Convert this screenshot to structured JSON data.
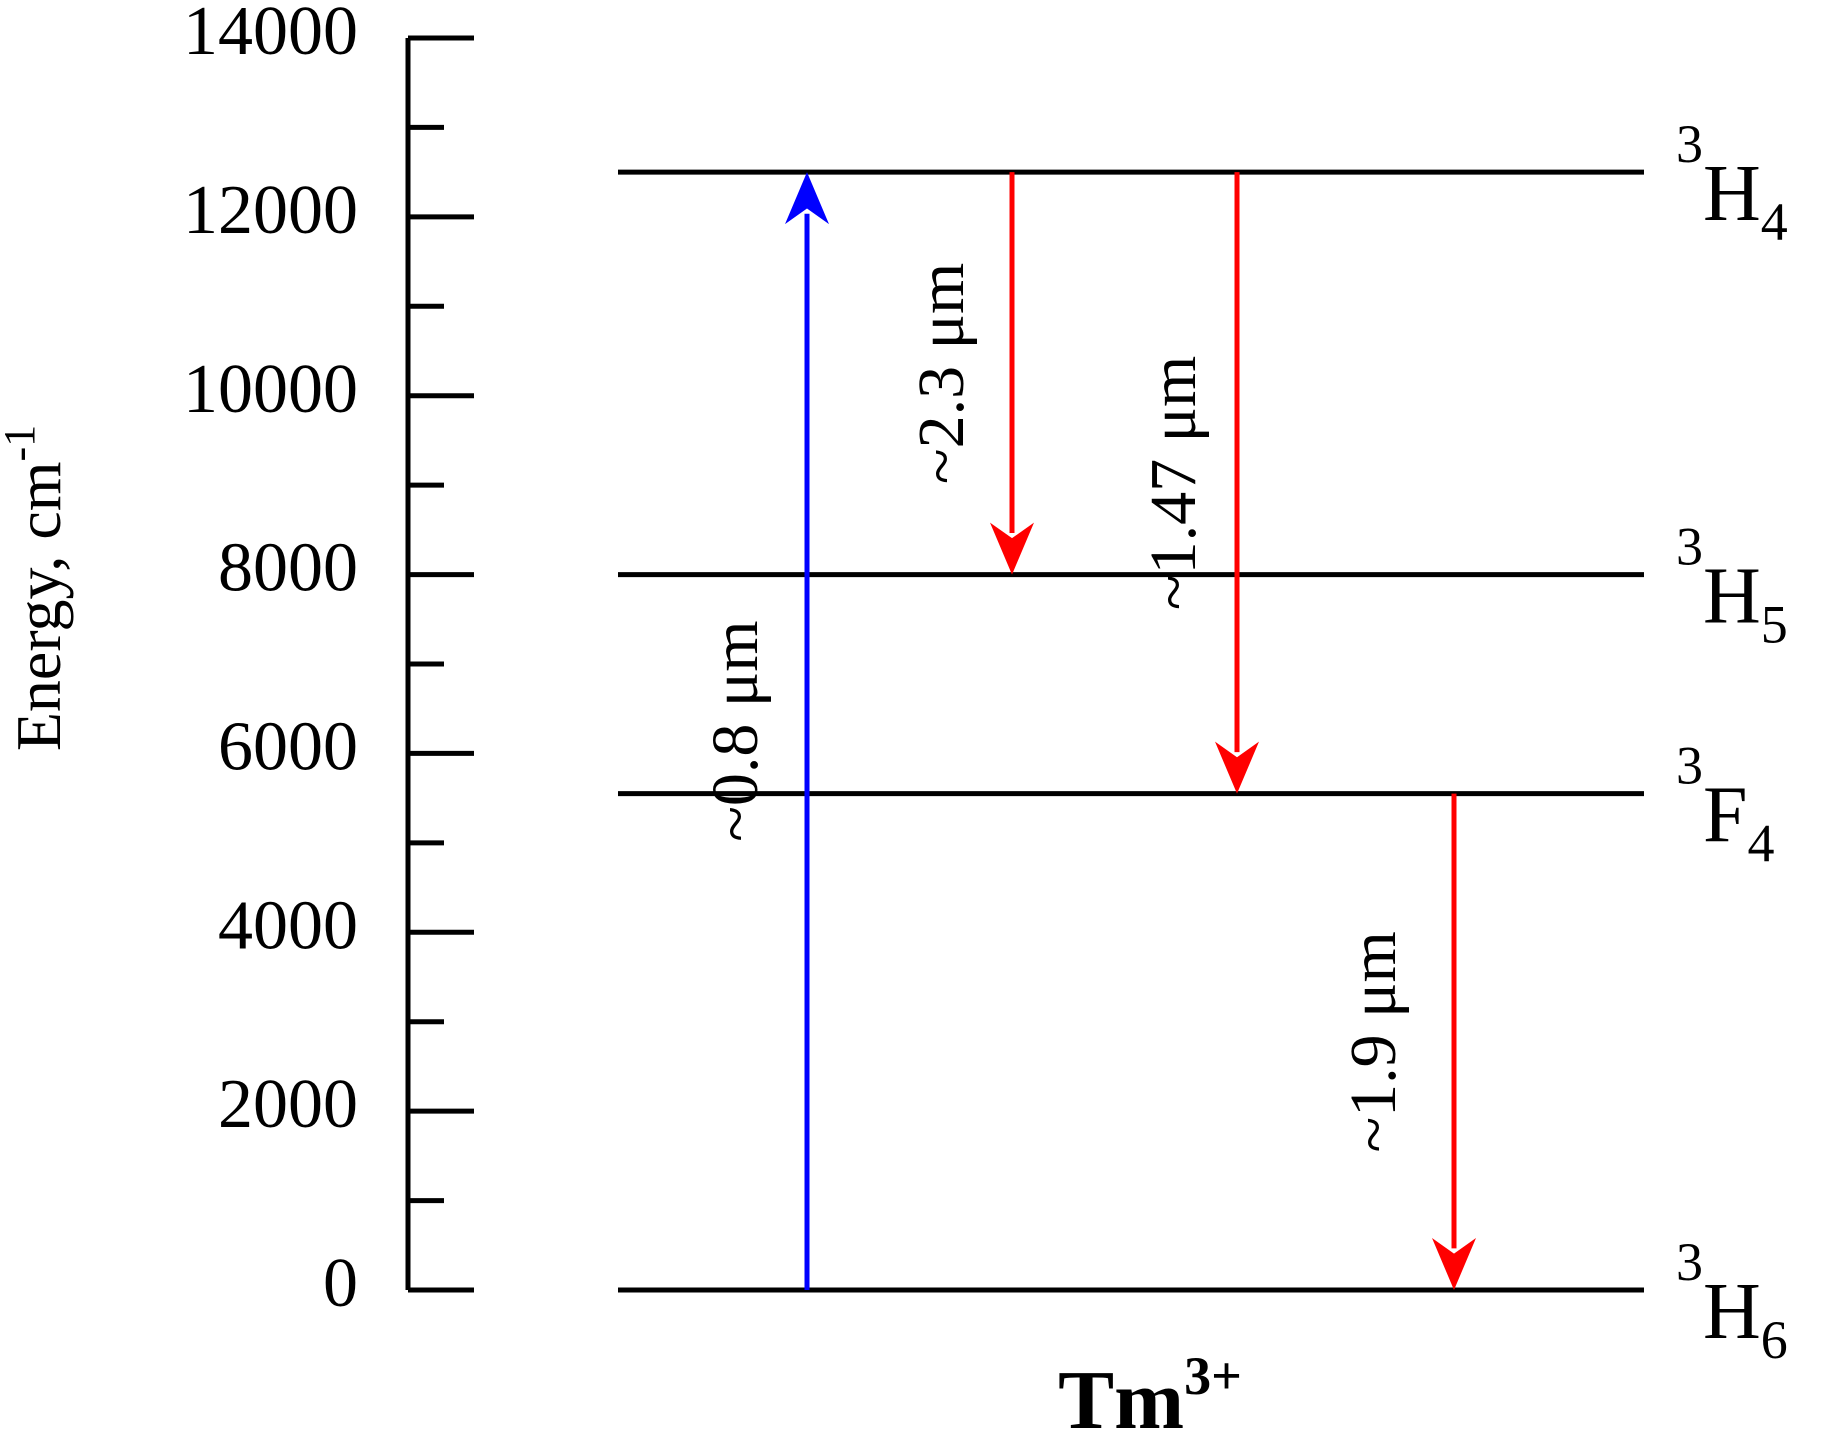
{
  "chart_data": {
    "type": "energy-levels",
    "y_label": {
      "text": "Energy, cm",
      "sup": "-1"
    },
    "x_label": {
      "text": "Tm",
      "sup": "3+"
    },
    "ylim": [
      0,
      14000
    ],
    "yticks": [
      0,
      2000,
      4000,
      6000,
      8000,
      10000,
      12000,
      14000
    ],
    "minor_yticks": [
      1000,
      3000,
      5000,
      7000,
      9000,
      11000,
      13000
    ],
    "levels": [
      {
        "sup": "3",
        "base": "H",
        "sub": "4",
        "value": 12500
      },
      {
        "sup": "3",
        "base": "H",
        "sub": "5",
        "value": 8000
      },
      {
        "sup": "3",
        "base": "F",
        "sub": "4",
        "value": 5550
      },
      {
        "sup": "3",
        "base": "H",
        "sub": "6",
        "value": 0
      }
    ],
    "transitions": [
      {
        "label": "~0.8 μm",
        "from": 0,
        "to": 12500,
        "color": "#0000ff"
      },
      {
        "label": "~2.3 μm",
        "from": 12500,
        "to": 8000,
        "color": "#ff0000"
      },
      {
        "label": "~1.47 μm",
        "from": 12500,
        "to": 5550,
        "color": "#ff0000"
      },
      {
        "label": "~1.9 μm",
        "from": 5550,
        "to": 0,
        "color": "#ff0000"
      }
    ]
  }
}
